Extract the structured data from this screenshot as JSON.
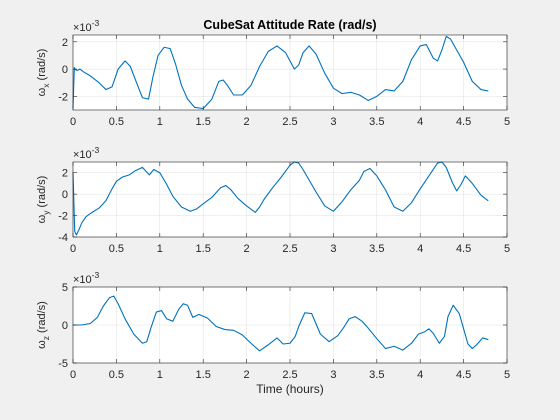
{
  "figure": {
    "background": "#f0f0f0",
    "axes_color": "#262626",
    "line_color": "#0072bd"
  },
  "chart_data": [
    {
      "type": "line",
      "title": "CubeSat Attitude Rate (rad/s)",
      "xlabel": "",
      "ylabel_main": "ω",
      "ylabel_sub": "x",
      "ylabel_unit": " (rad/s)",
      "exponent_base": "×10",
      "exponent_power": "-3",
      "xlim": [
        0,
        5
      ],
      "ylim": [
        -0.003,
        0.0025
      ],
      "grid": true,
      "xticks": [
        0,
        0.5,
        1,
        1.5,
        2,
        2.5,
        3,
        3.5,
        4,
        4.5,
        5
      ],
      "xtick_labels": [
        "0",
        "0.5",
        "1",
        "1.5",
        "2",
        "2.5",
        "3",
        "3.5",
        "4",
        "4.5",
        "5"
      ],
      "yticks": [
        -0.002,
        0,
        0.002
      ],
      "ytick_labels": [
        "-2",
        "0",
        "2"
      ],
      "series": [
        {
          "x": [
            0,
            0.015,
            0.03,
            0.05,
            0.08,
            0.12,
            0.2,
            0.3,
            0.38,
            0.45,
            0.52,
            0.6,
            0.66,
            0.72,
            0.8,
            0.87,
            0.92,
            0.98,
            1.05,
            1.12,
            1.18,
            1.25,
            1.32,
            1.4,
            1.5,
            1.6,
            1.68,
            1.73,
            1.78,
            1.85,
            1.95,
            2.05,
            2.15,
            2.25,
            2.35,
            2.45,
            2.55,
            2.6,
            2.65,
            2.72,
            2.8,
            2.9,
            3.0,
            3.1,
            3.2,
            3.3,
            3.4,
            3.5,
            3.6,
            3.7,
            3.8,
            3.9,
            4.0,
            4.07,
            4.15,
            4.2,
            4.25,
            4.3,
            4.35,
            4.42,
            4.5,
            4.6,
            4.7,
            4.78
          ],
          "y": [
            -0.0028,
            0.0001,
            -5e-05,
            -0.0001,
            0.0,
            -0.0002,
            -0.0005,
            -0.001,
            -0.0015,
            -0.0013,
            0.0,
            0.0006,
            0.0002,
            -0.0008,
            -0.0021,
            -0.0022,
            -0.0006,
            0.001,
            0.0016,
            0.0015,
            0.0004,
            -0.0012,
            -0.0022,
            -0.0028,
            -0.0029,
            -0.0022,
            -0.0009,
            -0.0008,
            -0.0012,
            -0.0019,
            -0.0019,
            -0.0012,
            0.0002,
            0.0013,
            0.0017,
            0.0012,
            0.0,
            0.0003,
            0.0012,
            0.0017,
            0.0011,
            -0.0003,
            -0.0014,
            -0.0018,
            -0.0017,
            -0.0019,
            -0.0023,
            -0.002,
            -0.0015,
            -0.0016,
            -0.0009,
            0.0007,
            0.0017,
            0.0018,
            0.0008,
            0.0006,
            0.0014,
            0.0024,
            0.0022,
            0.0014,
            0.0005,
            -0.0009,
            -0.0015,
            -0.0016
          ]
        }
      ]
    },
    {
      "type": "line",
      "title": "",
      "xlabel": "",
      "ylabel_main": "ω",
      "ylabel_sub": "y",
      "ylabel_unit": " (rad/s)",
      "exponent_base": "×10",
      "exponent_power": "-3",
      "xlim": [
        0,
        5
      ],
      "ylim": [
        -0.004,
        0.003
      ],
      "grid": true,
      "xticks": [
        0,
        0.5,
        1,
        1.5,
        2,
        2.5,
        3,
        3.5,
        4,
        4.5,
        5
      ],
      "xtick_labels": [
        "0",
        "0.5",
        "1",
        "1.5",
        "2",
        "2.5",
        "3",
        "3.5",
        "4",
        "4.5",
        "5"
      ],
      "yticks": [
        -0.004,
        -0.002,
        0,
        0.002
      ],
      "ytick_labels": [
        "-4",
        "-2",
        "0",
        "2"
      ],
      "series": [
        {
          "x": [
            0,
            0.02,
            0.04,
            0.07,
            0.1,
            0.15,
            0.22,
            0.3,
            0.38,
            0.45,
            0.5,
            0.57,
            0.65,
            0.72,
            0.8,
            0.88,
            0.93,
            1.0,
            1.08,
            1.15,
            1.25,
            1.35,
            1.42,
            1.5,
            1.6,
            1.7,
            1.76,
            1.82,
            1.9,
            2.0,
            2.1,
            2.15,
            2.2,
            2.3,
            2.4,
            2.5,
            2.55,
            2.6,
            2.65,
            2.7,
            2.8,
            2.9,
            3.0,
            3.1,
            3.2,
            3.3,
            3.35,
            3.42,
            3.5,
            3.6,
            3.7,
            3.8,
            3.9,
            4.0,
            4.1,
            4.2,
            4.25,
            4.3,
            4.37,
            4.42,
            4.47,
            4.52,
            4.6,
            4.7,
            4.78
          ],
          "y": [
            0.002,
            -0.0035,
            -0.0038,
            -0.0033,
            -0.0027,
            -0.0021,
            -0.0017,
            -0.0013,
            -0.0006,
            0.0005,
            0.0012,
            0.0016,
            0.0018,
            0.0022,
            0.0025,
            0.0018,
            0.0023,
            0.002,
            0.0009,
            -0.0002,
            -0.0012,
            -0.0016,
            -0.0014,
            -0.0009,
            -0.0003,
            0.0006,
            0.0008,
            0.0004,
            -0.0004,
            -0.0011,
            -0.0017,
            -0.0012,
            -0.0005,
            0.0006,
            0.0016,
            0.0027,
            0.003,
            0.0029,
            0.0023,
            0.0016,
            0.0002,
            -0.0011,
            -0.0016,
            -0.0007,
            0.0004,
            0.0013,
            0.0021,
            0.0024,
            0.0017,
            0.0004,
            -0.0012,
            -0.0016,
            -0.0008,
            0.0005,
            0.0017,
            0.0029,
            0.003,
            0.0025,
            0.0011,
            0.0003,
            0.0009,
            0.0017,
            0.001,
            -0.0001,
            -0.0006
          ]
        }
      ]
    },
    {
      "type": "line",
      "title": "",
      "xlabel": "Time (hours)",
      "ylabel_main": "ω",
      "ylabel_sub": "z",
      "ylabel_unit": " (rad/s)",
      "exponent_base": "×10",
      "exponent_power": "-3",
      "xlim": [
        0,
        5
      ],
      "ylim": [
        -0.005,
        0.005
      ],
      "grid": true,
      "xticks": [
        0,
        0.5,
        1,
        1.5,
        2,
        2.5,
        3,
        3.5,
        4,
        4.5,
        5
      ],
      "xtick_labels": [
        "0",
        "0.5",
        "1",
        "1.5",
        "2",
        "2.5",
        "3",
        "3.5",
        "4",
        "4.5",
        "5"
      ],
      "yticks": [
        -0.005,
        0,
        0.005
      ],
      "ytick_labels": [
        "-5",
        "0",
        "5"
      ],
      "series": [
        {
          "x": [
            0,
            0.1,
            0.2,
            0.28,
            0.35,
            0.42,
            0.47,
            0.52,
            0.6,
            0.7,
            0.8,
            0.85,
            0.9,
            0.96,
            1.02,
            1.08,
            1.15,
            1.22,
            1.27,
            1.32,
            1.38,
            1.45,
            1.55,
            1.65,
            1.75,
            1.85,
            1.95,
            2.05,
            2.15,
            2.25,
            2.35,
            2.42,
            2.5,
            2.56,
            2.6,
            2.67,
            2.75,
            2.85,
            2.95,
            3.05,
            3.12,
            3.18,
            3.25,
            3.33,
            3.4,
            3.5,
            3.6,
            3.7,
            3.8,
            3.9,
            3.98,
            4.05,
            4.1,
            4.15,
            4.22,
            4.28,
            4.32,
            4.38,
            4.45,
            4.5,
            4.55,
            4.6,
            4.65,
            4.72,
            4.78
          ],
          "y": [
            0.0,
            0.0,
            0.0002,
            0.001,
            0.0025,
            0.0036,
            0.0038,
            0.0028,
            0.0008,
            -0.0012,
            -0.0024,
            -0.0022,
            -0.0003,
            0.0017,
            0.0019,
            0.0008,
            0.0005,
            0.0021,
            0.0028,
            0.0026,
            0.001,
            0.0014,
            0.0009,
            -0.0002,
            -0.0006,
            -0.0007,
            -0.0013,
            -0.0024,
            -0.0034,
            -0.0026,
            -0.0017,
            -0.0025,
            -0.0024,
            -0.0015,
            -0.0002,
            0.0016,
            0.0015,
            -0.0012,
            -0.0022,
            -0.0014,
            -0.0003,
            0.0008,
            0.0011,
            0.0005,
            -0.0004,
            -0.0018,
            -0.0031,
            -0.0028,
            -0.0033,
            -0.0024,
            -0.0012,
            -0.0009,
            -0.0005,
            -0.0011,
            -0.0024,
            -0.0015,
            0.0011,
            0.0026,
            0.0015,
            -0.0005,
            -0.0025,
            -0.0031,
            -0.0026,
            -0.0017,
            -0.0019
          ]
        }
      ]
    }
  ]
}
